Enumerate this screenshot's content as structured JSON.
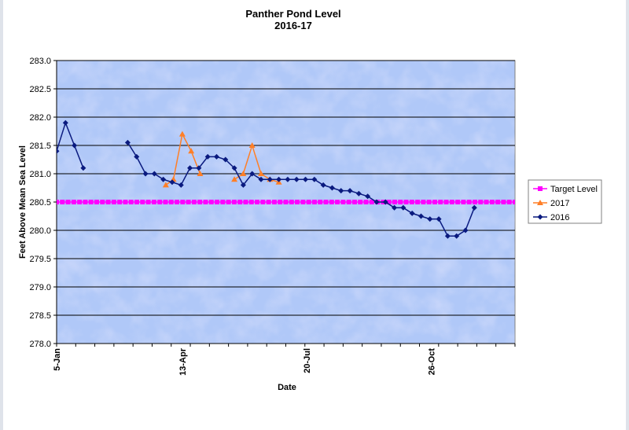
{
  "chart_data": {
    "type": "line",
    "title": "Panther Pond Level",
    "subtitle": "2016-17",
    "xlabel": "Date",
    "ylabel": "Feet Above Mean Sea Level",
    "ylim": [
      278.0,
      283.0
    ],
    "yticks": [
      "278.0",
      "278.5",
      "279.0",
      "279.5",
      "280.0",
      "280.5",
      "281.0",
      "281.5",
      "282.0",
      "282.5",
      "283.0"
    ],
    "xlim": [
      "2016-01-05",
      "2016-12-31"
    ],
    "xticks": [
      {
        "date": "2016-01-05",
        "label": "5-Jan"
      },
      {
        "date": "2016-04-13",
        "label": "13-Apr"
      },
      {
        "date": "2016-07-20",
        "label": "20-Jul"
      },
      {
        "date": "2016-10-26",
        "label": "26-Oct"
      }
    ],
    "grid": true,
    "legend_position": "right",
    "series": [
      {
        "name": "Target Level",
        "color": "#ff00ff",
        "marker": "square",
        "style": "dashed",
        "x": [
          "2016-01-05",
          "2016-12-31"
        ],
        "y": [
          280.5,
          280.5
        ]
      },
      {
        "name": "2017",
        "color": "#ff7f27",
        "marker": "triangle",
        "x": [
          "2016-03-31",
          "2016-04-06",
          "2016-04-13",
          "2016-04-20",
          "2016-04-27",
          "null",
          "2016-05-24",
          "2016-05-31",
          "2016-06-07",
          "2016-06-14",
          "2016-06-21",
          "2016-06-28"
        ],
        "y": [
          280.8,
          280.9,
          281.7,
          281.4,
          281.0,
          null,
          280.9,
          281.0,
          281.5,
          281.0,
          280.9,
          280.85
        ]
      },
      {
        "name": "2016",
        "color": "#0a1a7f",
        "marker": "diamond",
        "x": [
          "2016-01-05",
          "2016-01-12",
          "2016-01-19",
          "2016-01-26",
          "null",
          "2016-03-01",
          "2016-03-08",
          "2016-03-15",
          "2016-03-22",
          "2016-03-29",
          "2016-04-05",
          "2016-04-12",
          "2016-04-19",
          "2016-04-26",
          "2016-05-03",
          "2016-05-10",
          "2016-05-17",
          "2016-05-24",
          "2016-05-31",
          "2016-06-07",
          "2016-06-14",
          "2016-06-21",
          "2016-06-28",
          "2016-07-05",
          "2016-07-12",
          "2016-07-19",
          "2016-07-26",
          "2016-08-02",
          "2016-08-09",
          "2016-08-16",
          "2016-08-23",
          "2016-08-30",
          "2016-09-06",
          "2016-09-13",
          "2016-09-20",
          "2016-09-27",
          "2016-10-04",
          "2016-10-11",
          "2016-10-18",
          "2016-10-25",
          "2016-11-01",
          "2016-11-08",
          "2016-11-15",
          "2016-11-22",
          "2016-11-29"
        ],
        "y": [
          281.4,
          281.9,
          281.5,
          281.1,
          null,
          281.55,
          281.3,
          281.0,
          281.0,
          280.9,
          280.85,
          280.8,
          281.1,
          281.1,
          281.3,
          281.3,
          281.25,
          281.1,
          280.8,
          281.0,
          280.9,
          280.9,
          280.9,
          280.9,
          280.9,
          280.9,
          280.9,
          280.8,
          280.75,
          280.7,
          280.7,
          280.65,
          280.6,
          280.5,
          280.5,
          280.4,
          280.4,
          280.3,
          280.25,
          280.2,
          280.2,
          279.9,
          279.9,
          280.0,
          280.4
        ]
      }
    ]
  }
}
